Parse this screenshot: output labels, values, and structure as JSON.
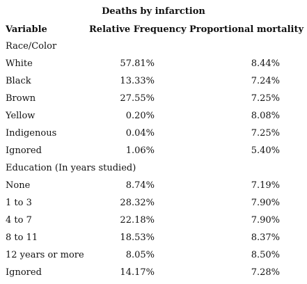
{
  "title": "Deaths by infarction",
  "table": {
    "header": [
      "Variable",
      "Relative Frequency",
      "Proportional mortality"
    ],
    "sections": [
      {
        "label": "Race/Color",
        "rows": [
          [
            "White",
            "57.81%",
            "8.44%"
          ],
          [
            "Black",
            "13.33%",
            "7.24%"
          ],
          [
            "Brown",
            "27.55%",
            "7.25%"
          ],
          [
            "Yellow",
            "0.20%",
            "8.08%"
          ],
          [
            "Indigenous",
            "0.04%",
            "7.25%"
          ],
          [
            "Ignored",
            "1.06%",
            "5.40%"
          ]
        ]
      },
      {
        "label": "Education (In years studied)",
        "rows": [
          [
            "None",
            "8.74%",
            "7.19%"
          ],
          [
            "1 to 3",
            "28.32%",
            "7.90%"
          ],
          [
            "4 to 7",
            "22.18%",
            "7.90%"
          ],
          [
            "8 to 11",
            "18.53%",
            "8.37%"
          ],
          [
            "12 years or more",
            "8.05%",
            "8.50%"
          ],
          [
            "Ignored",
            "14.17%",
            "7.28%"
          ]
        ]
      }
    ]
  }
}
